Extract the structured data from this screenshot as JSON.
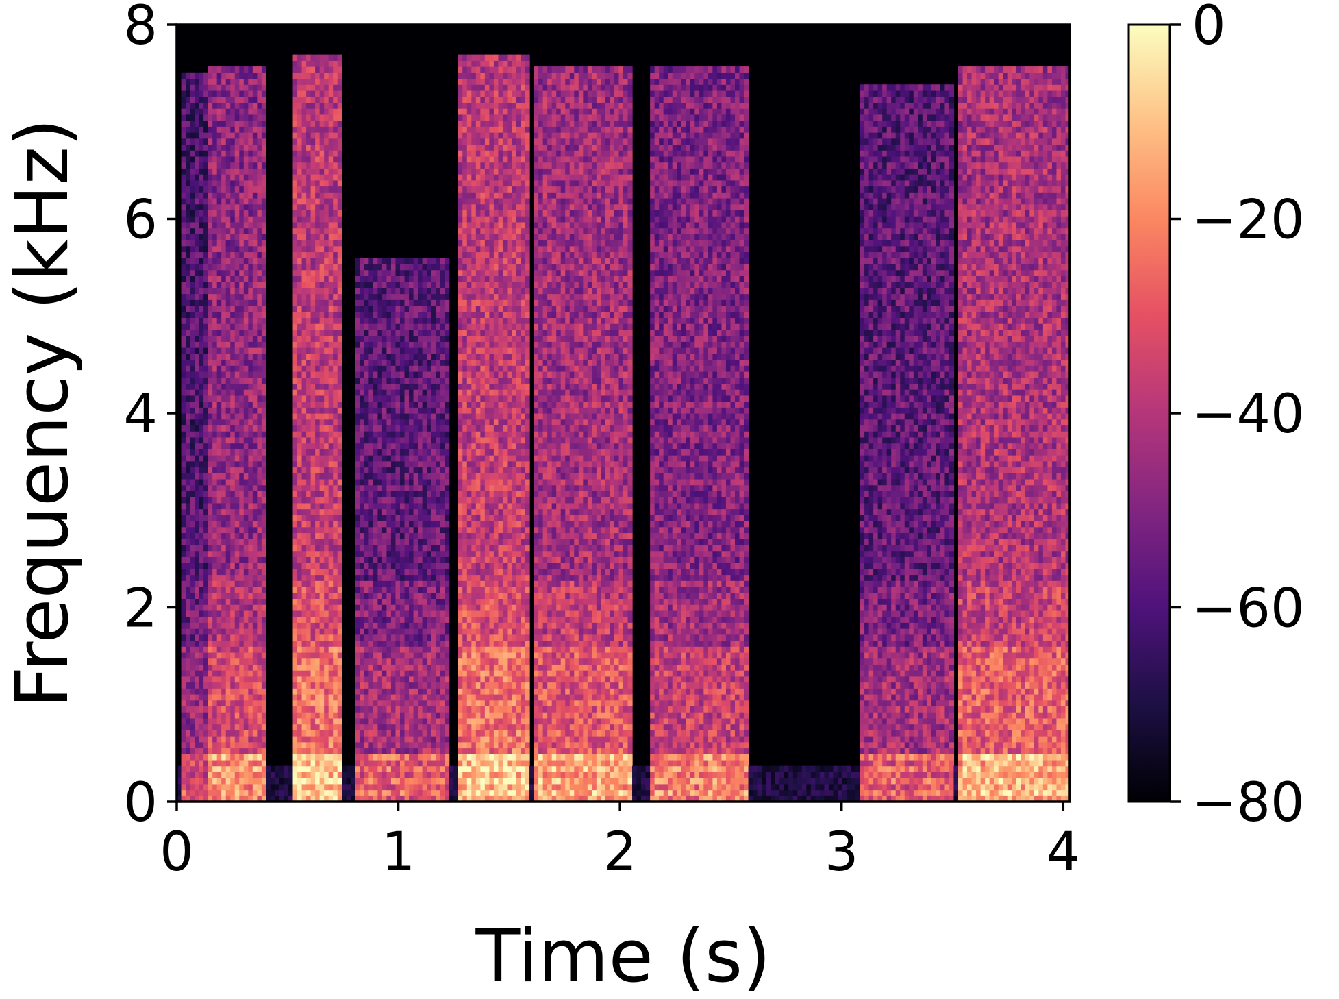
{
  "chart_data": {
    "type": "heatmap",
    "xlabel": "Time (s)",
    "ylabel": "Frequency (kHz)",
    "xlim": [
      0,
      4.03
    ],
    "ylim": [
      0,
      8
    ],
    "x_ticks": [
      0,
      1,
      2,
      3,
      4
    ],
    "x_tick_labels": [
      "0",
      "1",
      "2",
      "3",
      "4"
    ],
    "y_ticks": [
      0,
      2,
      4,
      6,
      8
    ],
    "y_tick_labels": [
      "0",
      "2",
      "4",
      "6",
      "8"
    ],
    "colorbar": {
      "colormap": "magma",
      "range": [
        -80,
        0
      ],
      "ticks": [
        0,
        -20,
        -40,
        -60,
        -80
      ],
      "tick_labels": [
        "0",
        "−20",
        "−40",
        "−60",
        "−80"
      ]
    },
    "grid": false,
    "segments": [
      {
        "t": [
          0.02,
          0.14
        ],
        "top_khz": 7.5,
        "level_db": -58
      },
      {
        "t": [
          0.15,
          0.4
        ],
        "top_khz": 7.6,
        "level_db": -45
      },
      {
        "t": [
          0.52,
          0.75
        ],
        "top_khz": 7.7,
        "level_db": -36
      },
      {
        "t": [
          0.8,
          1.22
        ],
        "top_khz": 5.6,
        "level_db": -55
      },
      {
        "t": [
          1.26,
          1.6
        ],
        "top_khz": 7.7,
        "level_db": -36
      },
      {
        "t": [
          1.62,
          2.05
        ],
        "top_khz": 7.6,
        "level_db": -42
      },
      {
        "t": [
          2.14,
          2.58
        ],
        "top_khz": 7.6,
        "level_db": -48
      },
      {
        "t": [
          3.08,
          3.5
        ],
        "top_khz": 7.4,
        "level_db": -55
      },
      {
        "t": [
          3.52,
          4.02
        ],
        "top_khz": 7.6,
        "level_db": -40
      }
    ]
  }
}
